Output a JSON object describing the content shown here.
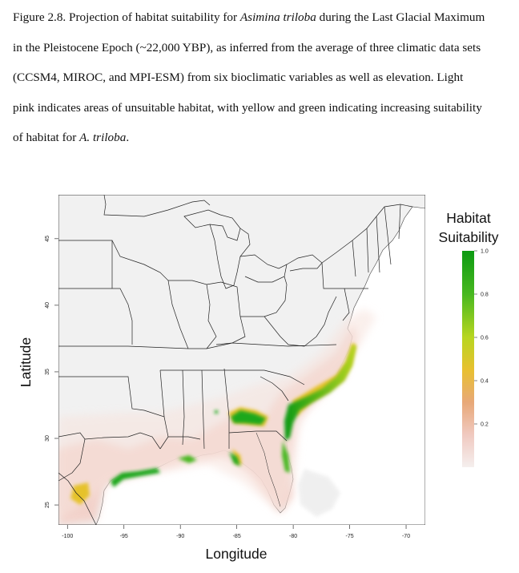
{
  "caption": {
    "line1_pre": "Figure 2.8. Projection of habitat suitability for ",
    "line1_italic": "Asimina triloba",
    "line1_post": " during the Last Glacial Maximum",
    "line2": "in the Pleistocene Epoch (~22,000 YBP), as inferred from the average of three climatic data sets",
    "line3": "(CCSM4, MIROC, and MPI-ESM) from six bioclimatic variables as well as elevation.  Light",
    "line4": "pink indicates areas of unsuitable habitat, with yellow and green indicating increasing suitability",
    "line5_pre": "of habitat for ",
    "line5_italic": "A. triloba",
    "line5_post": "."
  },
  "map": {
    "xlabel": "Longitude",
    "ylabel": "Latitude",
    "x_ticks": [
      -100,
      -95,
      -90,
      -85,
      -80,
      -75,
      -70
    ],
    "y_ticks": [
      25,
      30,
      35,
      40,
      45
    ],
    "xlim": [
      -100.8,
      -68.3
    ],
    "ylim": [
      23.5,
      48.3
    ]
  },
  "legend": {
    "title_line1": "Habitat",
    "title_line2": "Suitability",
    "ticks": [
      0.2,
      0.4,
      0.6,
      0.8,
      1.0
    ],
    "tick_labels": [
      "0.2",
      "0.4",
      "0.6",
      "0.8",
      "1.0"
    ],
    "range": [
      0,
      1.0
    ],
    "colors": [
      "#f5efee",
      "#f0c9c0",
      "#e8a878",
      "#e8c030",
      "#b8d620",
      "#48b820",
      "#0c9a12"
    ]
  },
  "colors": {
    "land": "#f2f2f2",
    "border": "#222222",
    "unsuitable_pink": "#f3cfc6",
    "yellow": "#e6c22a",
    "green": "#1aa81a"
  }
}
